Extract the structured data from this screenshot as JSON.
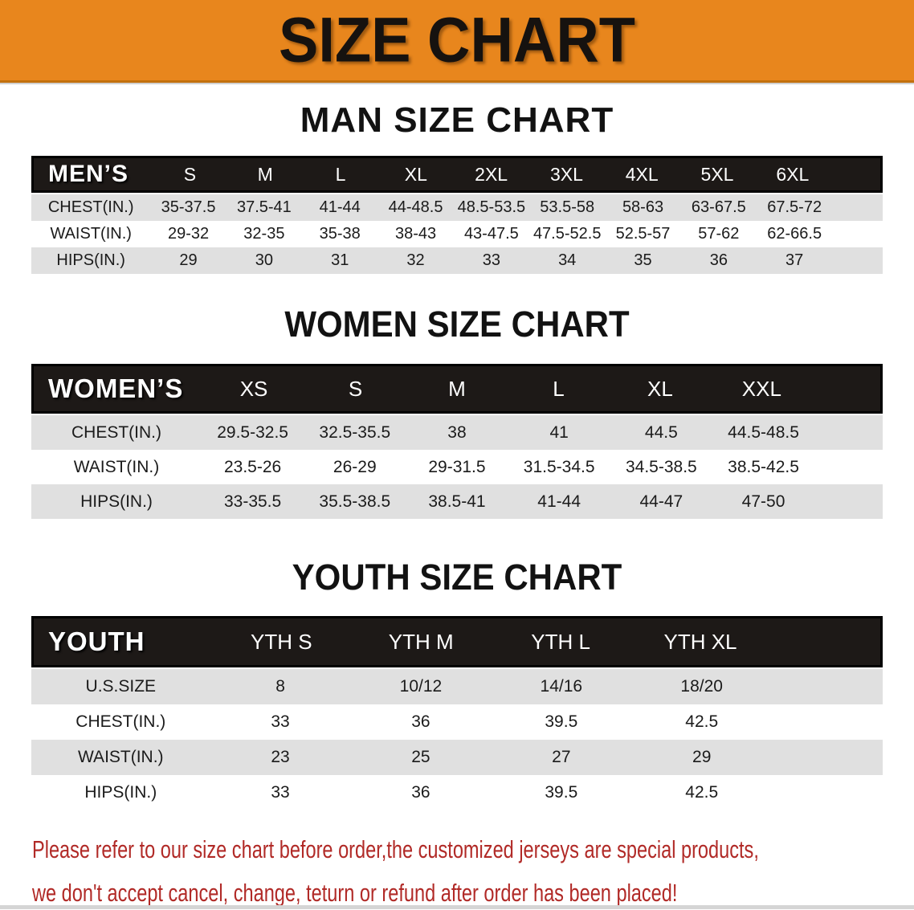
{
  "banner": {
    "title": "SIZE CHART"
  },
  "colors": {
    "banner_bg": "#E8861D",
    "banner_text": "#16120F",
    "header_bar_bg": "#1D1917",
    "header_bar_border": "#000000",
    "header_bar_text": "#FFFFFF",
    "row_shaded_bg": "#E0E0E0",
    "row_plain_bg": "#FFFFFF",
    "body_text": "#1B1B1B",
    "disclaimer_text": "#B12A27"
  },
  "sections": [
    {
      "title": "MAN SIZE CHART",
      "header_label": "MEN’S",
      "columns": [
        "S",
        "M",
        "L",
        "XL",
        "2XL",
        "3XL",
        "4XL",
        "5XL",
        "6XL"
      ],
      "rows": [
        {
          "label": "CHEST(IN.)",
          "values": [
            "35-37.5",
            "37.5-41",
            "41-44",
            "44-48.5",
            "48.5-53.5",
            "53.5-58",
            "58-63",
            "63-67.5",
            "67.5-72"
          ]
        },
        {
          "label": "WAIST(IN.)",
          "values": [
            "29-32",
            "32-35",
            "35-38",
            "38-43",
            "43-47.5",
            "47.5-52.5",
            "52.5-57",
            "57-62",
            "62-66.5"
          ]
        },
        {
          "label": "HIPS(IN.)",
          "values": [
            "29",
            "30",
            "31",
            "32",
            "33",
            "34",
            "35",
            "36",
            "37"
          ]
        }
      ]
    },
    {
      "title": "WOMEN SIZE CHART",
      "header_label": "WOMEN’S",
      "columns": [
        "XS",
        "S",
        "M",
        "L",
        "XL",
        "XXL"
      ],
      "rows": [
        {
          "label": "CHEST(IN.)",
          "values": [
            "29.5-32.5",
            "32.5-35.5",
            "38",
            "41",
            "44.5",
            "44.5-48.5"
          ]
        },
        {
          "label": "WAIST(IN.)",
          "values": [
            "23.5-26",
            "26-29",
            "29-31.5",
            "31.5-34.5",
            "34.5-38.5",
            "38.5-42.5"
          ]
        },
        {
          "label": "HIPS(IN.)",
          "values": [
            "33-35.5",
            "35.5-38.5",
            "38.5-41",
            "41-44",
            "44-47",
            "47-50"
          ]
        }
      ]
    },
    {
      "title": "YOUTH SIZE CHART",
      "header_label": "YOUTH",
      "columns": [
        "YTH S",
        "YTH M",
        "YTH L",
        "YTH XL"
      ],
      "rows": [
        {
          "label": "U.S.SIZE",
          "values": [
            "8",
            "10/12",
            "14/16",
            "18/20"
          ]
        },
        {
          "label": "CHEST(IN.)",
          "values": [
            "33",
            "36",
            "39.5",
            "42.5"
          ]
        },
        {
          "label": "WAIST(IN.)",
          "values": [
            "23",
            "25",
            "27",
            "29"
          ]
        },
        {
          "label": "HIPS(IN.)",
          "values": [
            "33",
            "36",
            "39.5",
            "42.5"
          ]
        }
      ]
    }
  ],
  "footer": {
    "line1": "Please refer to our size chart before order,the customized jerseys are special products,",
    "line2": "we don't accept cancel, change, teturn or refund after order has been placed!"
  }
}
